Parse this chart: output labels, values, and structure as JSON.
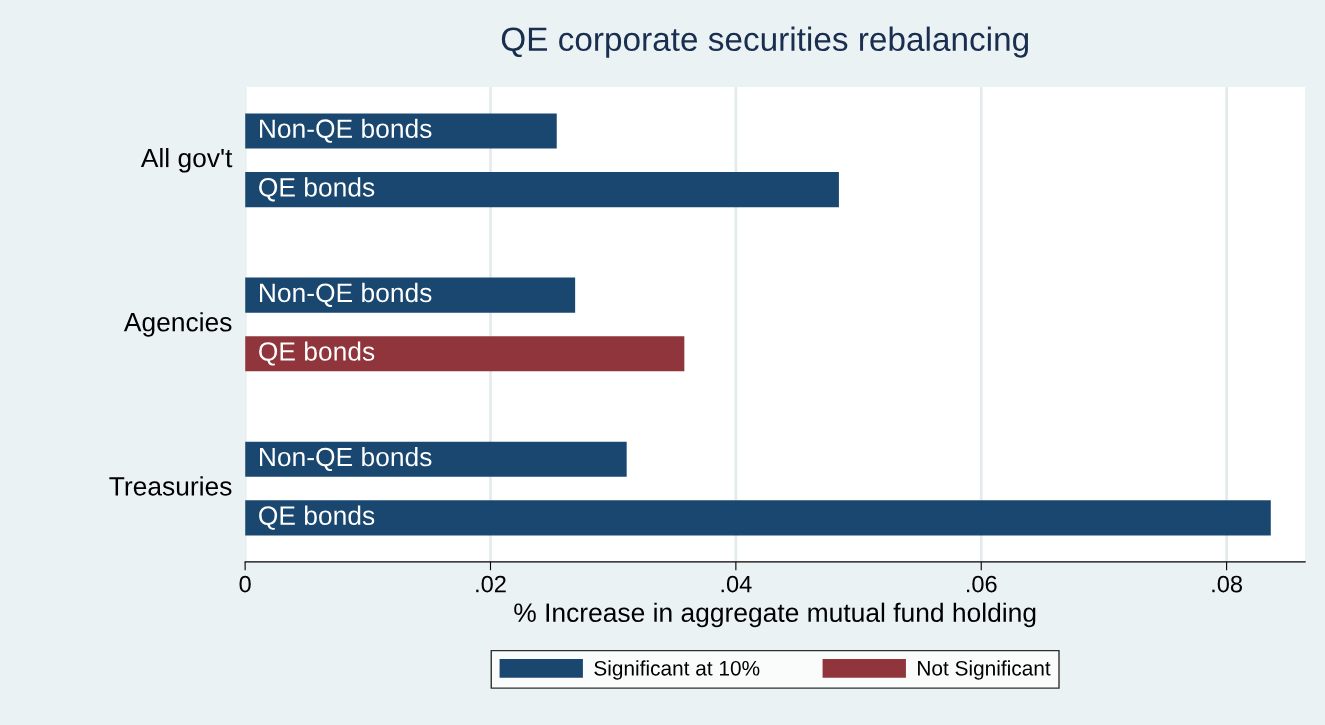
{
  "chart_data": {
    "type": "bar",
    "orientation": "horizontal",
    "title": "QE corporate securities rebalancing",
    "xlabel": "% Increase in aggregate mutual fund holding",
    "categories": [
      "Non-QE bonds",
      "QE bonds",
      "Non-QE bonds",
      "QE bonds",
      "Non-QE bonds",
      "QE bonds"
    ],
    "annotations": [
      "All gov't",
      "Agencies",
      "Treasuries"
    ],
    "series": [
      {
        "name": "Significant at 10%",
        "color": "#1a476f",
        "values": [
          0.0254,
          0.0484,
          0.0269,
          null,
          0.0311,
          0.0836
        ]
      },
      {
        "name": "Not Significant",
        "color": "#90353b",
        "values": [
          null,
          null,
          null,
          0.0358,
          null,
          null
        ]
      }
    ],
    "xlim": [
      0,
      0.0864
    ],
    "xticks": [
      {
        "value": 0,
        "label": "0"
      },
      {
        "value": 0.02,
        "label": ".02"
      },
      {
        "value": 0.04,
        "label": ".04"
      },
      {
        "value": 0.06,
        "label": ".06"
      },
      {
        "value": 0.08,
        "label": ".08"
      }
    ],
    "grid": "x",
    "legend": "bottom"
  }
}
